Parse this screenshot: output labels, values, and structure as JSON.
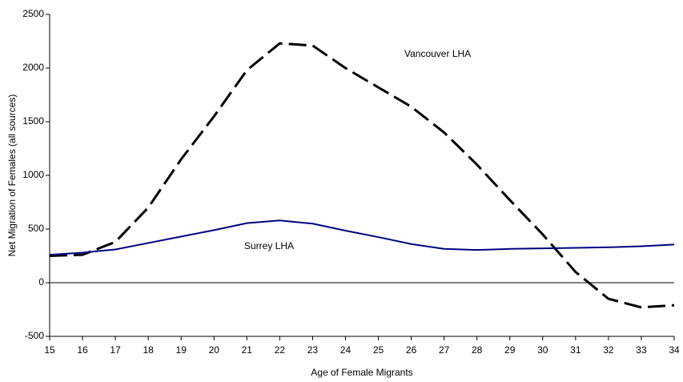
{
  "chart_data": {
    "type": "line",
    "x_label": "Age of Female Migrants",
    "y_label": "Net Migration of Females (all sources)",
    "x": [
      15,
      16,
      17,
      18,
      19,
      20,
      21,
      22,
      23,
      24,
      25,
      26,
      27,
      28,
      29,
      30,
      31,
      32,
      33,
      34
    ],
    "series": [
      {
        "name": "Vancouver LHA",
        "color": "#000000",
        "dashed": true,
        "values": [
          250,
          260,
          380,
          700,
          1150,
          1550,
          1980,
          2230,
          2210,
          2000,
          1820,
          1640,
          1400,
          1100,
          770,
          450,
          100,
          -150,
          -230,
          -210
        ]
      },
      {
        "name": "Surrey LHA",
        "color": "#000080",
        "dashed": false,
        "values": [
          260,
          280,
          310,
          370,
          430,
          490,
          555,
          580,
          550,
          485,
          425,
          360,
          315,
          305,
          315,
          320,
          325,
          330,
          340,
          355
        ]
      }
    ],
    "xlim": [
      15,
      34
    ],
    "xticks": [
      15,
      16,
      17,
      18,
      19,
      20,
      21,
      22,
      23,
      24,
      25,
      26,
      27,
      28,
      29,
      30,
      31,
      32,
      33,
      34
    ],
    "ylim": [
      -500,
      2500
    ],
    "yticks": [
      -500,
      0,
      500,
      1000,
      1500,
      2000,
      2500
    ],
    "grid": false
  }
}
